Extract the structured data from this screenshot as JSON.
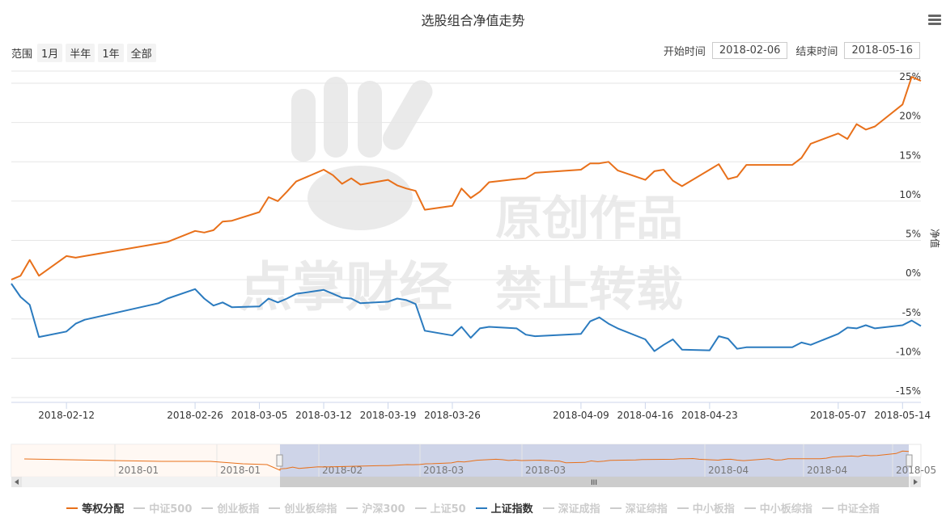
{
  "title": "选股组合净值走势",
  "range": {
    "label": "范围",
    "buttons": [
      "1月",
      "半年",
      "1年",
      "全部"
    ]
  },
  "date_range": {
    "start_label": "开始时间",
    "start_value": "2018-02-06",
    "end_label": "结束时间",
    "end_value": "2018-05-16"
  },
  "colors": {
    "portfolio": "#e8701a",
    "index": "#2b7bbf",
    "inactive": "#cccccc",
    "grid": "#e6e6e6",
    "navigator_mask": "#c6cde4"
  },
  "chart_data": {
    "type": "line",
    "ylabel": "净值",
    "ylim": [
      -15,
      25
    ],
    "yticks": [
      "-15%",
      "-10%",
      "-5%",
      "0%",
      "5%",
      "10%",
      "15%",
      "20%",
      "25%"
    ],
    "ytick_values": [
      -15,
      -10,
      -5,
      0,
      5,
      10,
      15,
      20,
      25
    ],
    "xlim": [
      "2018-02-06",
      "2018-05-16"
    ],
    "xticks": [
      "2018-02-12",
      "2018-02-26",
      "2018-03-05",
      "2018-03-12",
      "2018-03-19",
      "2018-03-26",
      "2018-04-09",
      "2018-04-16",
      "2018-04-23",
      "2018-05-07",
      "2018-05-14"
    ],
    "grid": true,
    "series": [
      {
        "name": "等权分配",
        "color": "#e8701a",
        "x": [
          "2018-02-06",
          "2018-02-07",
          "2018-02-08",
          "2018-02-09",
          "2018-02-12",
          "2018-02-13",
          "2018-02-14",
          "2018-02-22",
          "2018-02-23",
          "2018-02-26",
          "2018-02-27",
          "2018-02-28",
          "2018-03-01",
          "2018-03-02",
          "2018-03-05",
          "2018-03-06",
          "2018-03-07",
          "2018-03-08",
          "2018-03-09",
          "2018-03-12",
          "2018-03-13",
          "2018-03-14",
          "2018-03-15",
          "2018-03-16",
          "2018-03-19",
          "2018-03-20",
          "2018-03-21",
          "2018-03-22",
          "2018-03-23",
          "2018-03-26",
          "2018-03-27",
          "2018-03-28",
          "2018-03-29",
          "2018-03-30",
          "2018-04-02",
          "2018-04-03",
          "2018-04-04",
          "2018-04-09",
          "2018-04-10",
          "2018-04-11",
          "2018-04-12",
          "2018-04-13",
          "2018-04-16",
          "2018-04-17",
          "2018-04-18",
          "2018-04-19",
          "2018-04-20",
          "2018-04-23",
          "2018-04-24",
          "2018-04-25",
          "2018-04-26",
          "2018-04-27",
          "2018-05-02",
          "2018-05-03",
          "2018-05-04",
          "2018-05-07",
          "2018-05-08",
          "2018-05-09",
          "2018-05-10",
          "2018-05-11",
          "2018-05-14",
          "2018-05-15",
          "2018-05-16"
        ],
        "values": [
          0,
          0.5,
          2.5,
          0.5,
          3,
          2.8,
          3,
          4.6,
          4.8,
          6.2,
          6.0,
          6.3,
          7.4,
          7.5,
          8.6,
          10.5,
          10.0,
          11.2,
          12.5,
          14.0,
          13.3,
          12.2,
          12.9,
          12.1,
          12.7,
          12.0,
          11.6,
          11.3,
          8.9,
          9.4,
          11.6,
          10.4,
          11.2,
          12.4,
          12.8,
          12.9,
          13.6,
          14.0,
          14.8,
          14.8,
          15.0,
          13.9,
          12.7,
          13.8,
          14.0,
          12.6,
          11.9,
          14.0,
          14.7,
          12.8,
          13.1,
          14.6,
          14.6,
          15.5,
          17.3,
          18.6,
          17.9,
          19.8,
          19.1,
          19.5,
          22.3,
          25.8,
          25.3
        ]
      },
      {
        "name": "上证指数",
        "color": "#2b7bbf",
        "x": [
          "2018-02-06",
          "2018-02-07",
          "2018-02-08",
          "2018-02-09",
          "2018-02-12",
          "2018-02-13",
          "2018-02-14",
          "2018-02-22",
          "2018-02-23",
          "2018-02-26",
          "2018-02-27",
          "2018-02-28",
          "2018-03-01",
          "2018-03-02",
          "2018-03-05",
          "2018-03-06",
          "2018-03-07",
          "2018-03-08",
          "2018-03-09",
          "2018-03-12",
          "2018-03-13",
          "2018-03-14",
          "2018-03-15",
          "2018-03-16",
          "2018-03-19",
          "2018-03-20",
          "2018-03-21",
          "2018-03-22",
          "2018-03-23",
          "2018-03-26",
          "2018-03-27",
          "2018-03-28",
          "2018-03-29",
          "2018-03-30",
          "2018-04-02",
          "2018-04-03",
          "2018-04-04",
          "2018-04-09",
          "2018-04-10",
          "2018-04-11",
          "2018-04-12",
          "2018-04-13",
          "2018-04-16",
          "2018-04-17",
          "2018-04-18",
          "2018-04-19",
          "2018-04-20",
          "2018-04-23",
          "2018-04-24",
          "2018-04-25",
          "2018-04-26",
          "2018-04-27",
          "2018-05-02",
          "2018-05-03",
          "2018-05-04",
          "2018-05-07",
          "2018-05-08",
          "2018-05-09",
          "2018-05-10",
          "2018-05-11",
          "2018-05-14",
          "2018-05-15",
          "2018-05-16"
        ],
        "values": [
          -0.5,
          -2.2,
          -3.2,
          -7.3,
          -6.6,
          -5.6,
          -5.1,
          -3.0,
          -2.4,
          -1.2,
          -2.4,
          -3.3,
          -2.9,
          -3.5,
          -3.4,
          -2.4,
          -2.9,
          -2.4,
          -1.8,
          -1.3,
          -1.8,
          -2.3,
          -2.4,
          -3.0,
          -2.8,
          -2.4,
          -2.6,
          -3.1,
          -6.5,
          -7.1,
          -6.0,
          -7.4,
          -6.2,
          -6.0,
          -6.2,
          -7.0,
          -7.2,
          -6.9,
          -5.3,
          -4.8,
          -5.6,
          -6.2,
          -7.6,
          -9.1,
          -8.3,
          -7.6,
          -8.9,
          -9.0,
          -7.2,
          -7.5,
          -8.8,
          -8.6,
          -8.6,
          -8.0,
          -8.3,
          -6.9,
          -6.1,
          -6.2,
          -5.8,
          -6.2,
          -5.8,
          -5.2,
          -5.9
        ]
      }
    ]
  },
  "navigator": {
    "labels": [
      "2018-01",
      "2018-01",
      "2018-02",
      "2018-03",
      "2018-03",
      "2018-04",
      "2018-04",
      "2018-05"
    ],
    "scroll_thumb": "III"
  },
  "legend": [
    {
      "label": "等权分配",
      "active": true,
      "color": "#e8701a"
    },
    {
      "label": "中证500",
      "active": false
    },
    {
      "label": "创业板指",
      "active": false
    },
    {
      "label": "创业板综指",
      "active": false
    },
    {
      "label": "沪深300",
      "active": false
    },
    {
      "label": "上证50",
      "active": false
    },
    {
      "label": "上证指数",
      "active": true,
      "color": "#2b7bbf"
    },
    {
      "label": "深证成指",
      "active": false
    },
    {
      "label": "深证综指",
      "active": false
    },
    {
      "label": "中小板指",
      "active": false
    },
    {
      "label": "中小板综指",
      "active": false
    },
    {
      "label": "中证全指",
      "active": false
    }
  ],
  "watermark": {
    "line1": "原创作品",
    "line2a": "点掌财经",
    "line2b": "禁止转载"
  }
}
